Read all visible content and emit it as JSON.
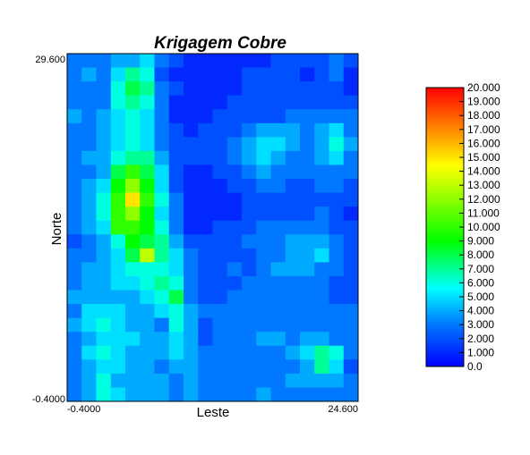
{
  "chart_data": {
    "type": "heatmap",
    "title": "Krigagem Cobre",
    "xlabel": "Leste",
    "ylabel": "Norte",
    "xlim": [
      -0.4,
      24.6
    ],
    "ylim": [
      -0.4,
      29.6
    ],
    "x_tick_labels": [
      "-0.4000",
      "24.600"
    ],
    "y_tick_labels": [
      "29.600",
      "-0.4000"
    ],
    "colorbar": {
      "range": [
        0,
        20
      ],
      "tick_labels": [
        "20.000",
        "19.000",
        "18.000",
        "17.000",
        "16.000",
        "15.000",
        "14.000",
        "13.000",
        "12.000",
        "11.000",
        "10.000",
        "9.000",
        "8.000",
        "7.000",
        "6.000",
        "5.000",
        "4.000",
        "3.000",
        "2.000",
        "1.000",
        "0.0"
      ],
      "colors": [
        "#0000ff",
        "#0080ff",
        "#00ffff",
        "#00ff00",
        "#ffff00",
        "#ff8000",
        "#ff0000"
      ]
    },
    "grid": {
      "rows": 25,
      "cols": 20,
      "row_order": "top-to-bottom",
      "values": [
        [
          3,
          3,
          3,
          4,
          4,
          5,
          3,
          2,
          1,
          1,
          1,
          1,
          1,
          1,
          2,
          2,
          2,
          2,
          3,
          2
        ],
        [
          3,
          4,
          3,
          5,
          7,
          6,
          2,
          1,
          1,
          1,
          1,
          1,
          2,
          2,
          2,
          2,
          1,
          2,
          3,
          1
        ],
        [
          3,
          3,
          3,
          6,
          8,
          7,
          3,
          2,
          1,
          1,
          1,
          1,
          2,
          2,
          2,
          2,
          2,
          2,
          2,
          1
        ],
        [
          3,
          3,
          3,
          6,
          7,
          6,
          3,
          1,
          1,
          1,
          1,
          2,
          2,
          2,
          2,
          2,
          2,
          2,
          2,
          2
        ],
        [
          4,
          3,
          4,
          5,
          6,
          5,
          3,
          1,
          1,
          1,
          2,
          2,
          2,
          2,
          2,
          3,
          3,
          3,
          3,
          3
        ],
        [
          3,
          3,
          4,
          5,
          6,
          5,
          3,
          2,
          1,
          2,
          2,
          2,
          3,
          4,
          4,
          4,
          3,
          4,
          5,
          3
        ],
        [
          3,
          3,
          4,
          5,
          6,
          5,
          3,
          2,
          2,
          2,
          2,
          3,
          4,
          5,
          5,
          4,
          3,
          4,
          6,
          4
        ],
        [
          3,
          4,
          4,
          6,
          7,
          7,
          4,
          2,
          2,
          2,
          2,
          3,
          4,
          5,
          4,
          3,
          3,
          4,
          5,
          3
        ],
        [
          3,
          3,
          4,
          8,
          10,
          8,
          5,
          2,
          1,
          1,
          2,
          2,
          3,
          4,
          3,
          3,
          3,
          3,
          3,
          3
        ],
        [
          3,
          4,
          5,
          9,
          12,
          9,
          5,
          2,
          1,
          1,
          1,
          2,
          2,
          3,
          3,
          2,
          2,
          3,
          3,
          2
        ],
        [
          3,
          4,
          6,
          10,
          15,
          10,
          6,
          3,
          1,
          1,
          1,
          1,
          2,
          2,
          2,
          2,
          2,
          2,
          2,
          2
        ],
        [
          3,
          4,
          6,
          10,
          12,
          9,
          5,
          3,
          1,
          1,
          1,
          1,
          2,
          2,
          2,
          2,
          2,
          3,
          2,
          1
        ],
        [
          3,
          4,
          5,
          10,
          10,
          9,
          6,
          3,
          1,
          1,
          2,
          2,
          2,
          3,
          3,
          3,
          3,
          3,
          2,
          2
        ],
        [
          2,
          3,
          4,
          6,
          9,
          8,
          7,
          4,
          2,
          2,
          2,
          2,
          3,
          3,
          3,
          4,
          4,
          4,
          3,
          2
        ],
        [
          3,
          3,
          4,
          5,
          8,
          13,
          7,
          5,
          3,
          2,
          2,
          2,
          2,
          3,
          3,
          4,
          4,
          5,
          3,
          2
        ],
        [
          3,
          4,
          4,
          5,
          6,
          6,
          6,
          5,
          3,
          2,
          2,
          3,
          2,
          3,
          4,
          4,
          4,
          3,
          3,
          2
        ],
        [
          3,
          4,
          4,
          5,
          5,
          6,
          7,
          6,
          3,
          2,
          2,
          2,
          3,
          3,
          3,
          3,
          3,
          3,
          2,
          2
        ],
        [
          4,
          4,
          4,
          4,
          4,
          5,
          6,
          8,
          3,
          2,
          2,
          3,
          3,
          3,
          3,
          3,
          3,
          3,
          2,
          2
        ],
        [
          3,
          5,
          5,
          5,
          4,
          4,
          5,
          6,
          4,
          3,
          3,
          3,
          3,
          3,
          3,
          3,
          3,
          3,
          3,
          3
        ],
        [
          4,
          5,
          6,
          5,
          4,
          4,
          3,
          6,
          4,
          2,
          3,
          3,
          3,
          3,
          3,
          3,
          3,
          3,
          3,
          3
        ],
        [
          3,
          4,
          5,
          5,
          5,
          4,
          4,
          5,
          4,
          2,
          3,
          3,
          3,
          4,
          4,
          3,
          4,
          4,
          3,
          3
        ],
        [
          3,
          5,
          6,
          5,
          4,
          4,
          4,
          5,
          4,
          3,
          3,
          3,
          3,
          3,
          3,
          4,
          5,
          7,
          6,
          3
        ],
        [
          3,
          4,
          5,
          5,
          4,
          4,
          3,
          4,
          4,
          3,
          3,
          3,
          3,
          3,
          3,
          3,
          4,
          7,
          5,
          2
        ],
        [
          3,
          4,
          6,
          4,
          4,
          4,
          4,
          3,
          4,
          3,
          3,
          3,
          3,
          3,
          3,
          4,
          4,
          4,
          4,
          3
        ],
        [
          3,
          4,
          6,
          5,
          4,
          4,
          4,
          3,
          4,
          3,
          3,
          3,
          3,
          4,
          3,
          3,
          3,
          3,
          3,
          3
        ]
      ]
    }
  }
}
